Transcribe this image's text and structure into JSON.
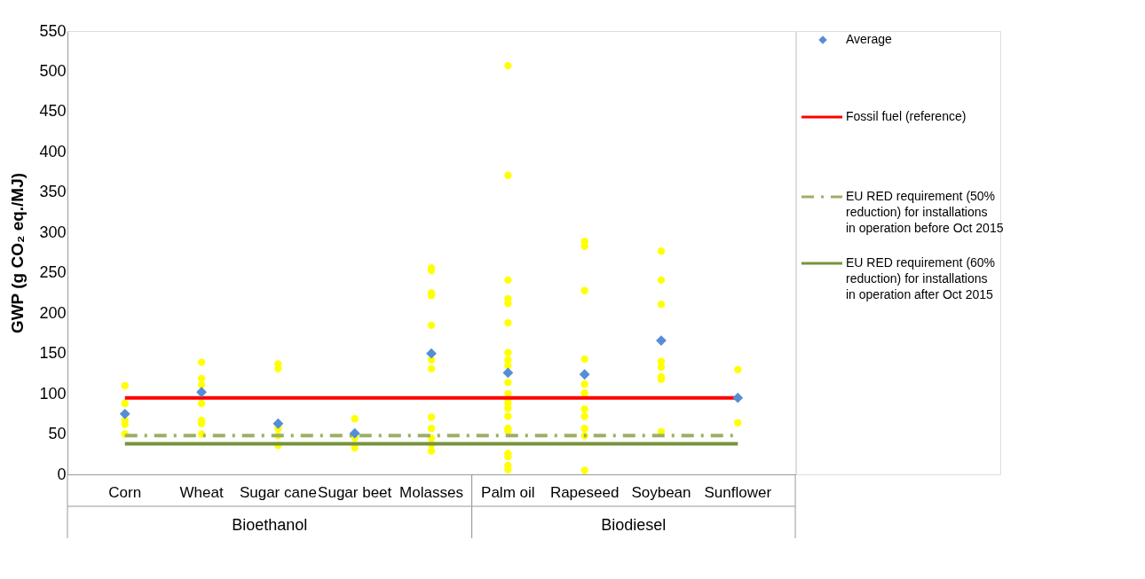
{
  "chart_data": {
    "type": "scatter",
    "ylabel": "GWP (g CO₂ eq./MJ)",
    "categories": [
      "Corn",
      "Wheat",
      "Sugar cane",
      "Sugar beet",
      "Molasses",
      "Palm oil",
      "Rapeseed",
      "Soybean",
      "Sunflower"
    ],
    "ylim": [
      0,
      550
    ],
    "yticks": [
      0,
      50,
      100,
      150,
      200,
      250,
      300,
      350,
      400,
      450,
      500,
      550
    ],
    "grid": false,
    "legend": "top right",
    "annotations": [
      "Bioethanol",
      "Biodiesel"
    ],
    "series": [
      {
        "color": "#ffff00",
        "marker": "circle",
        "x": [
          "Corn",
          "Corn",
          "Corn",
          "Corn",
          "Corn",
          "Wheat",
          "Wheat",
          "Wheat",
          "Wheat",
          "Wheat",
          "Wheat",
          "Wheat",
          "Sugar cane",
          "Sugar cane",
          "Sugar cane",
          "Sugar cane",
          "Sugar cane",
          "Sugar beet",
          "Sugar beet",
          "Sugar beet",
          "Molasses",
          "Molasses",
          "Molasses",
          "Molasses",
          "Molasses",
          "Molasses",
          "Molasses",
          "Molasses",
          "Molasses",
          "Molasses",
          "Molasses",
          "Molasses",
          "Palm oil",
          "Palm oil",
          "Palm oil",
          "Palm oil",
          "Palm oil",
          "Palm oil",
          "Palm oil",
          "Palm oil",
          "Palm oil",
          "Palm oil",
          "Palm oil",
          "Palm oil",
          "Palm oil",
          "Palm oil",
          "Palm oil",
          "Palm oil",
          "Palm oil",
          "Palm oil",
          "Palm oil",
          "Palm oil",
          "Palm oil",
          "Rapeseed",
          "Rapeseed",
          "Rapeseed",
          "Rapeseed",
          "Rapeseed",
          "Rapeseed",
          "Rapeseed",
          "Rapeseed",
          "Rapeseed",
          "Rapeseed",
          "Rapeseed",
          "Soybean",
          "Soybean",
          "Soybean",
          "Soybean",
          "Soybean",
          "Soybean",
          "Soybean",
          "Soybean",
          "Sunflower",
          "Sunflower"
        ],
        "values": [
          110,
          88,
          67,
          62,
          50,
          139,
          119,
          111,
          88,
          67,
          63,
          50,
          137,
          131,
          57,
          48,
          36,
          69,
          45,
          33,
          256,
          253,
          225,
          222,
          185,
          142,
          131,
          71,
          57,
          45,
          37,
          29,
          507,
          371,
          241,
          218,
          212,
          188,
          151,
          142,
          135,
          114,
          100,
          93,
          88,
          82,
          72,
          57,
          54,
          26,
          22,
          11,
          6,
          289,
          283,
          228,
          143,
          112,
          101,
          81,
          72,
          57,
          48,
          5,
          277,
          241,
          211,
          140,
          133,
          121,
          118,
          53,
          130,
          64
        ]
      },
      {
        "name": "Average",
        "color": "#558ed5",
        "marker": "diamond",
        "values": [
          75,
          102,
          63,
          51,
          150,
          126,
          124,
          166,
          95
        ]
      }
    ],
    "ref_lines": [
      {
        "axis": "y",
        "value": 95,
        "label": "Fossil fuel (reference)",
        "color": "#ff0000",
        "line_style": "solid"
      },
      {
        "axis": "y",
        "value": 48,
        "label": "EU RED requirement (50% reduction) for installations in operation before Oct 2015",
        "color": "#9bb065",
        "line_style": "dashed"
      },
      {
        "axis": "y",
        "value": 38,
        "label": "EU RED requirement (60% reduction) for installations in operation after Oct 2015",
        "color": "#77933c",
        "line_style": "solid"
      }
    ]
  }
}
